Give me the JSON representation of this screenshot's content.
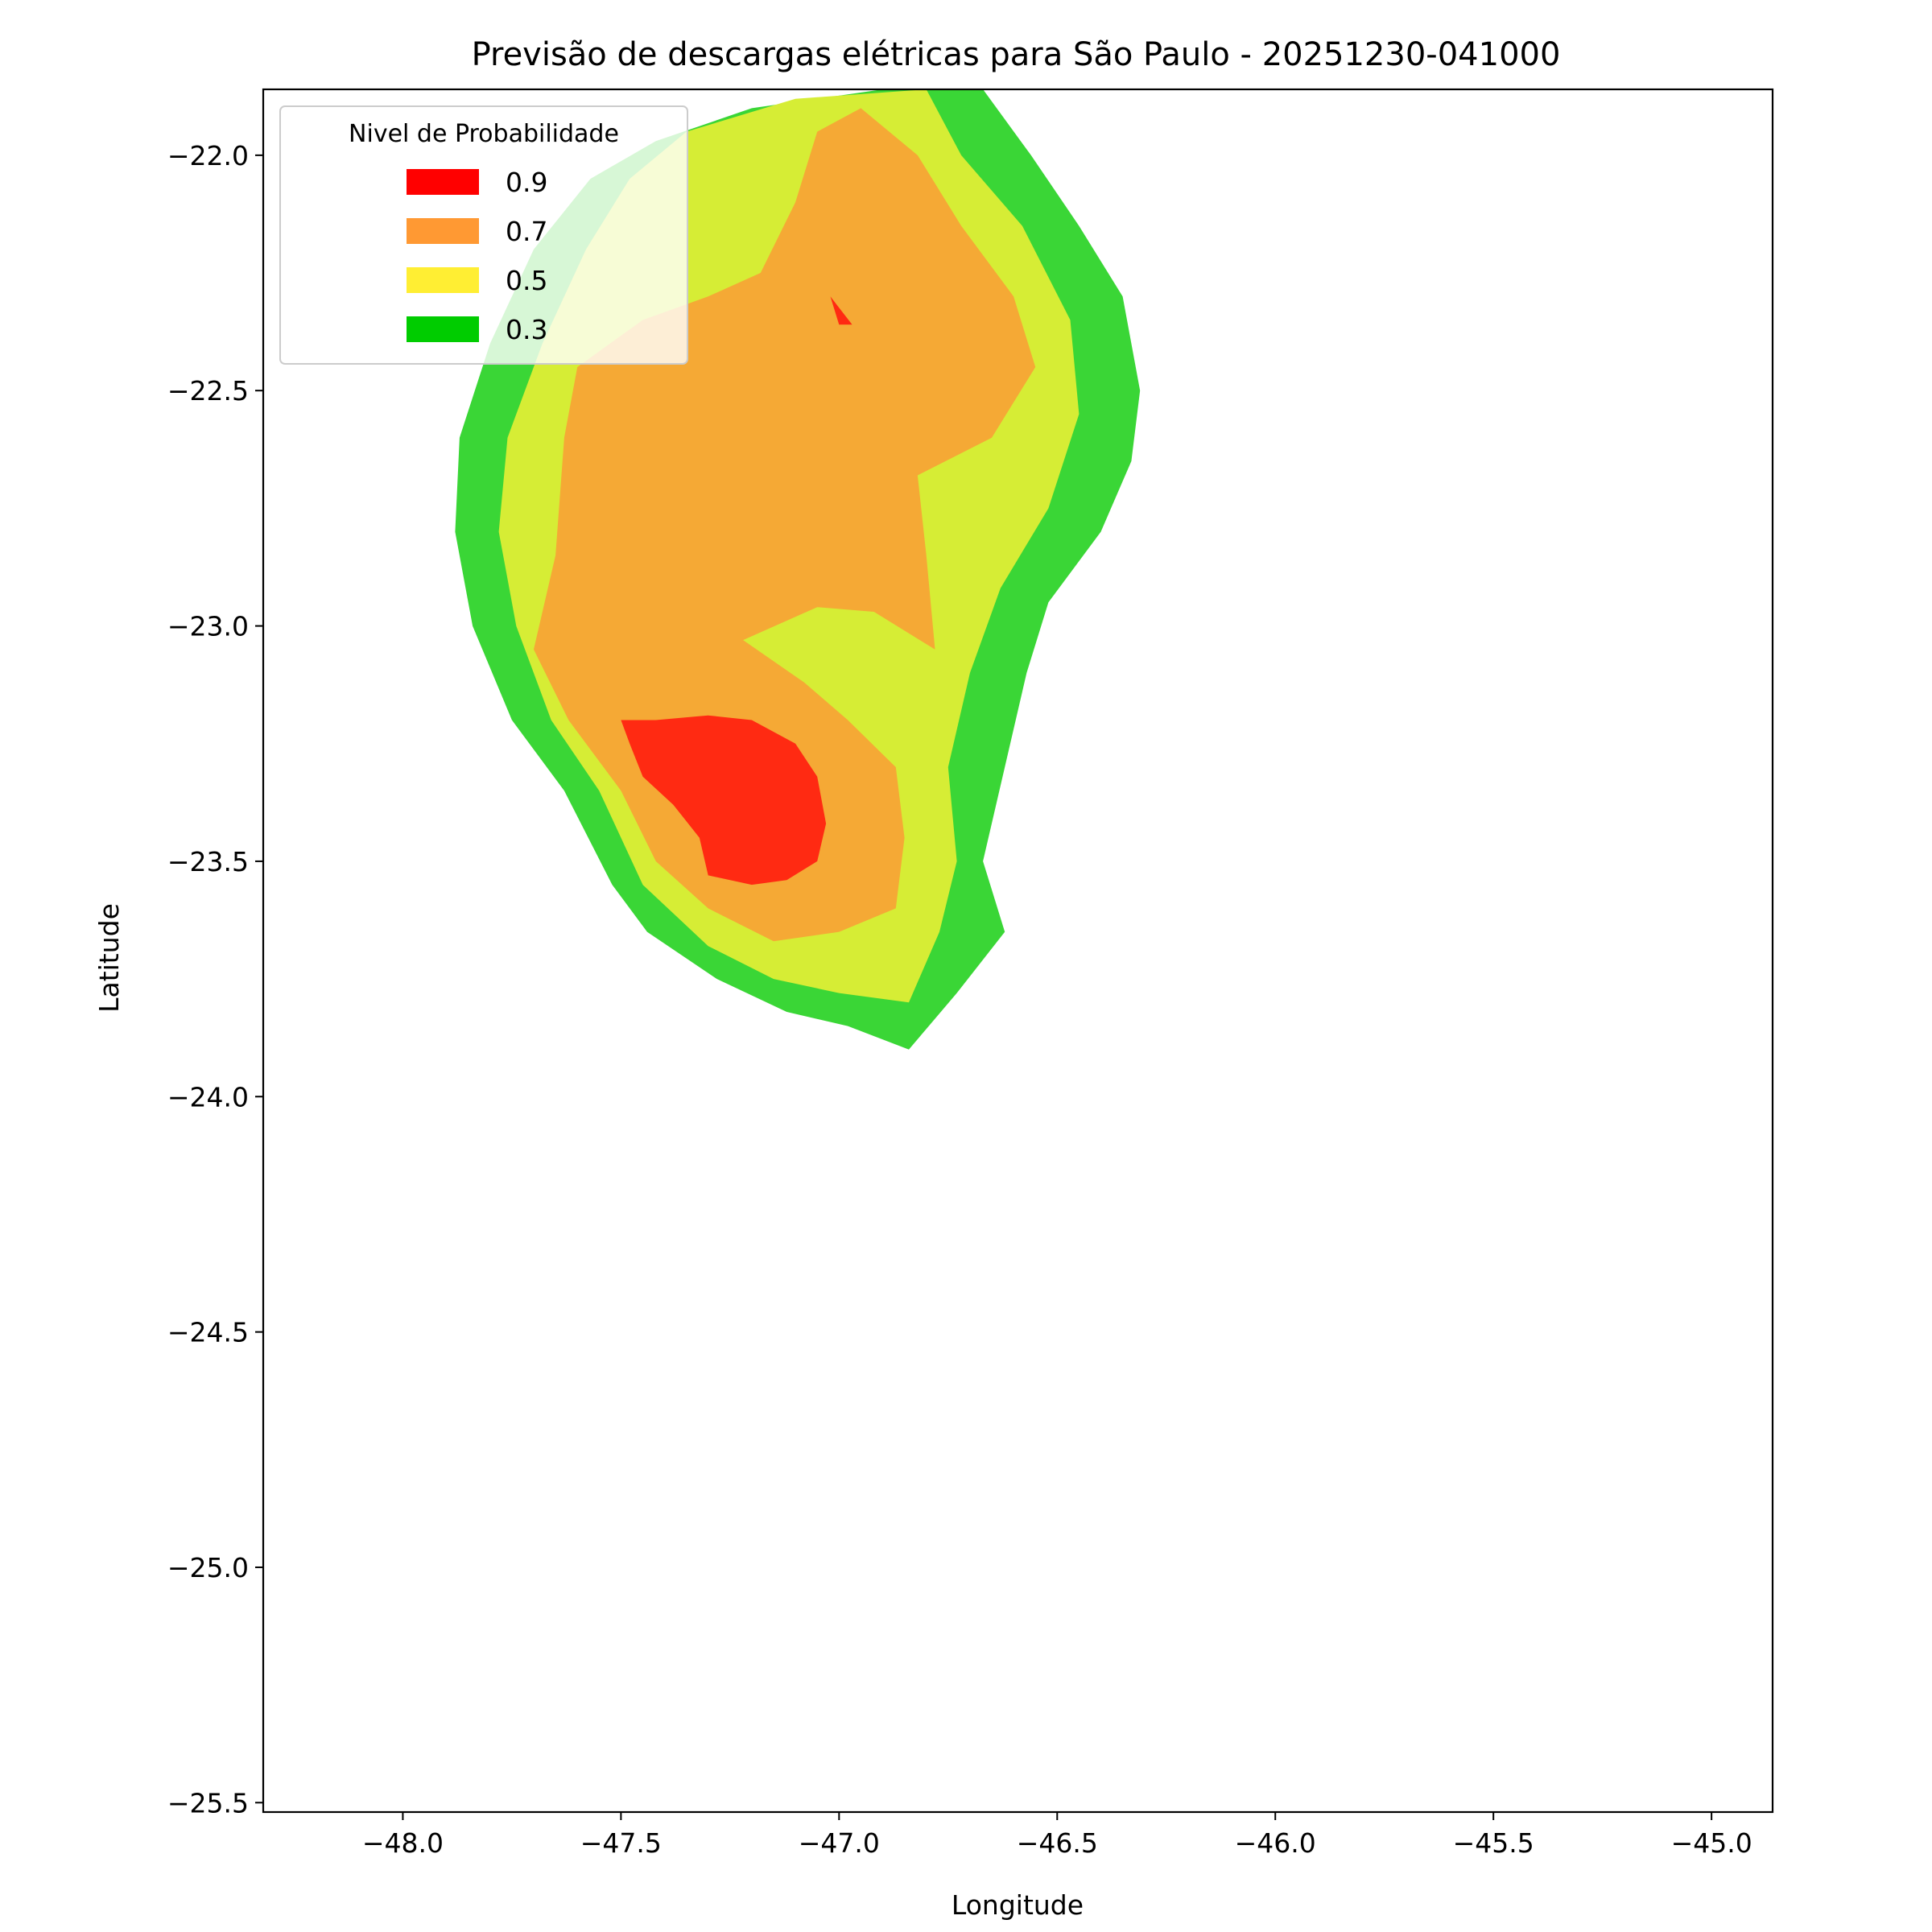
{
  "chart_data": {
    "type": "contour-map",
    "title": "Previsão de descargas elétricas para São Paulo - 20251230-041000",
    "xlabel": "Longitude",
    "ylabel": "Latitude",
    "xlim": [
      -48.32,
      -44.86
    ],
    "ylim": [
      -25.52,
      -21.86
    ],
    "xticks": [
      -48.0,
      -47.5,
      -47.0,
      -46.5,
      -46.0,
      -45.5,
      -45.0
    ],
    "yticks": [
      -22.0,
      -22.5,
      -23.0,
      -23.5,
      -24.0,
      -24.5,
      -25.0,
      -25.5
    ],
    "xtick_labels": [
      "−48.0",
      "−47.5",
      "−47.0",
      "−46.5",
      "−46.0",
      "−45.5",
      "−45.0"
    ],
    "ytick_labels": [
      "−22.0",
      "−22.5",
      "−23.0",
      "−23.5",
      "−24.0",
      "−24.5",
      "−25.0",
      "−25.5"
    ],
    "grid": false,
    "legend": {
      "title": "Nivel de Probabilidade",
      "position": "top-left",
      "entries": [
        {
          "label": "0.9",
          "color": "#ff0000"
        },
        {
          "label": "0.7",
          "color": "#ff9933"
        },
        {
          "label": "0.5",
          "color": "#ffee33"
        },
        {
          "label": "0.3",
          "color": "#00cc00"
        }
      ]
    },
    "series": [
      {
        "level": 0.3,
        "color": "#3ad636",
        "polygon": [
          [
            -46.67,
            -21.86
          ],
          [
            -46.56,
            -22.0
          ],
          [
            -46.45,
            -22.15
          ],
          [
            -46.35,
            -22.3
          ],
          [
            -46.31,
            -22.5
          ],
          [
            -46.33,
            -22.65
          ],
          [
            -46.4,
            -22.8
          ],
          [
            -46.52,
            -22.95
          ],
          [
            -46.57,
            -23.1
          ],
          [
            -46.62,
            -23.3
          ],
          [
            -46.67,
            -23.5
          ],
          [
            -46.62,
            -23.65
          ],
          [
            -46.73,
            -23.78
          ],
          [
            -46.84,
            -23.9
          ],
          [
            -46.98,
            -23.85
          ],
          [
            -47.12,
            -23.82
          ],
          [
            -47.28,
            -23.75
          ],
          [
            -47.44,
            -23.65
          ],
          [
            -47.52,
            -23.55
          ],
          [
            -47.63,
            -23.35
          ],
          [
            -47.75,
            -23.2
          ],
          [
            -47.84,
            -23.0
          ],
          [
            -47.88,
            -22.8
          ],
          [
            -47.87,
            -22.6
          ],
          [
            -47.8,
            -22.4
          ],
          [
            -47.7,
            -22.2
          ],
          [
            -47.57,
            -22.05
          ],
          [
            -47.42,
            -21.97
          ],
          [
            -47.2,
            -21.9
          ],
          [
            -46.9,
            -21.86
          ]
        ]
      },
      {
        "level": 0.5,
        "color": "#d6ed35",
        "polygon": [
          [
            -46.8,
            -21.86
          ],
          [
            -46.72,
            -22.0
          ],
          [
            -46.58,
            -22.15
          ],
          [
            -46.47,
            -22.35
          ],
          [
            -46.45,
            -22.55
          ],
          [
            -46.52,
            -22.75
          ],
          [
            -46.63,
            -22.92
          ],
          [
            -46.7,
            -23.1
          ],
          [
            -46.75,
            -23.3
          ],
          [
            -46.73,
            -23.5
          ],
          [
            -46.77,
            -23.65
          ],
          [
            -46.84,
            -23.8
          ],
          [
            -47.0,
            -23.78
          ],
          [
            -47.15,
            -23.75
          ],
          [
            -47.3,
            -23.68
          ],
          [
            -47.45,
            -23.55
          ],
          [
            -47.55,
            -23.35
          ],
          [
            -47.66,
            -23.2
          ],
          [
            -47.74,
            -23.0
          ],
          [
            -47.78,
            -22.8
          ],
          [
            -47.76,
            -22.6
          ],
          [
            -47.68,
            -22.4
          ],
          [
            -47.58,
            -22.2
          ],
          [
            -47.48,
            -22.05
          ],
          [
            -47.35,
            -21.95
          ],
          [
            -47.1,
            -21.88
          ]
        ]
      },
      {
        "level": 0.7,
        "color": "#f5a935",
        "polygon": [
          [
            -46.95,
            -21.9
          ],
          [
            -46.82,
            -22.0
          ],
          [
            -46.72,
            -22.15
          ],
          [
            -46.6,
            -22.3
          ],
          [
            -46.55,
            -22.45
          ],
          [
            -46.65,
            -22.6
          ],
          [
            -46.82,
            -22.68
          ],
          [
            -46.8,
            -22.85
          ],
          [
            -46.78,
            -23.05
          ],
          [
            -46.92,
            -22.97
          ],
          [
            -47.05,
            -22.96
          ],
          [
            -47.22,
            -23.03
          ],
          [
            -47.08,
            -23.12
          ],
          [
            -46.98,
            -23.2
          ],
          [
            -46.87,
            -23.3
          ],
          [
            -46.85,
            -23.45
          ],
          [
            -46.87,
            -23.6
          ],
          [
            -47.0,
            -23.65
          ],
          [
            -47.15,
            -23.67
          ],
          [
            -47.3,
            -23.6
          ],
          [
            -47.42,
            -23.5
          ],
          [
            -47.5,
            -23.35
          ],
          [
            -47.62,
            -23.2
          ],
          [
            -47.7,
            -23.05
          ],
          [
            -47.65,
            -22.85
          ],
          [
            -47.63,
            -22.6
          ],
          [
            -47.6,
            -22.45
          ],
          [
            -47.45,
            -22.35
          ],
          [
            -47.3,
            -22.3
          ],
          [
            -47.18,
            -22.25
          ],
          [
            -47.1,
            -22.1
          ],
          [
            -47.05,
            -21.95
          ]
        ]
      },
      {
        "level": 0.9,
        "color": "#ff2a12",
        "polygon": [
          [
            -47.5,
            -23.2
          ],
          [
            -47.42,
            -23.2
          ],
          [
            -47.3,
            -23.19
          ],
          [
            -47.2,
            -23.2
          ],
          [
            -47.1,
            -23.25
          ],
          [
            -47.05,
            -23.32
          ],
          [
            -47.03,
            -23.42
          ],
          [
            -47.05,
            -23.5
          ],
          [
            -47.12,
            -23.54
          ],
          [
            -47.2,
            -23.55
          ],
          [
            -47.3,
            -23.53
          ],
          [
            -47.32,
            -23.45
          ],
          [
            -47.38,
            -23.38
          ],
          [
            -47.45,
            -23.32
          ],
          [
            -47.48,
            -23.25
          ]
        ]
      },
      {
        "level": 0.9,
        "color": "#ff2a12",
        "polygon": [
          [
            -47.02,
            -22.3
          ],
          [
            -46.97,
            -22.36
          ],
          [
            -47.0,
            -22.36
          ]
        ]
      }
    ]
  }
}
